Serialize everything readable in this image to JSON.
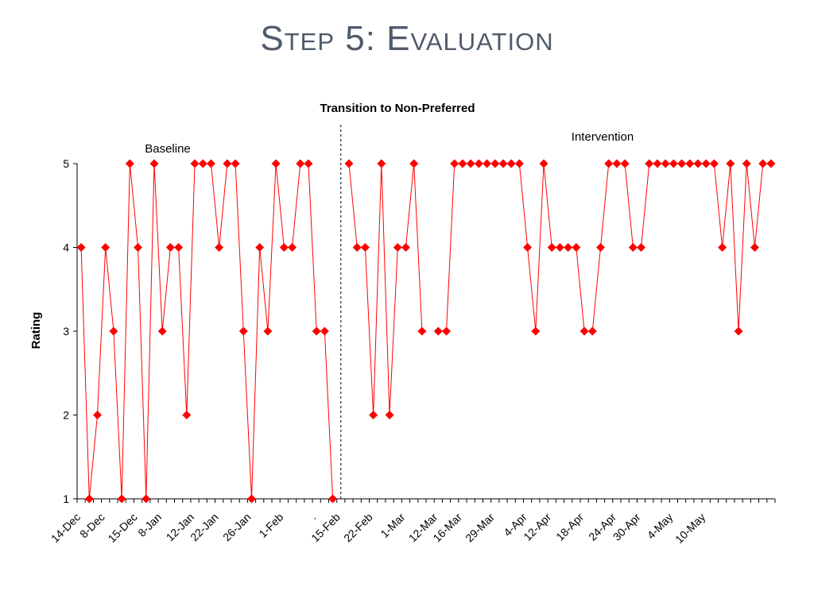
{
  "slide": {
    "title": "Step 5:  Evaluation"
  },
  "chart_data": {
    "type": "line",
    "title": "Transition to Non-Preferred",
    "ylabel": "Rating",
    "xlabel": "",
    "ylim": [
      1,
      5
    ],
    "yticks": [
      1,
      2,
      3,
      4,
      5
    ],
    "grid": false,
    "legend": "none",
    "colors": {
      "series": "#ff0000",
      "axis": "#000000",
      "phase_line": "#000000"
    },
    "x_tick_labels": [
      {
        "index": 0,
        "label": "14-Dec"
      },
      {
        "index": 3,
        "label": "8-Dec"
      },
      {
        "index": 7,
        "label": "15-Dec"
      },
      {
        "index": 10,
        "label": "8-Jan"
      },
      {
        "index": 14,
        "label": "12-Jan"
      },
      {
        "index": 17,
        "label": "22-Jan"
      },
      {
        "index": 21,
        "label": "26-Jan"
      },
      {
        "index": 25,
        "label": "1-Feb"
      },
      {
        "index": 29,
        "label": "."
      },
      {
        "index": 32,
        "label": "15-Feb"
      },
      {
        "index": 36,
        "label": "22-Feb"
      },
      {
        "index": 40,
        "label": "1-Mar"
      },
      {
        "index": 44,
        "label": "12-Mar"
      },
      {
        "index": 47,
        "label": "16-Mar"
      },
      {
        "index": 51,
        "label": "29-Mar"
      },
      {
        "index": 55,
        "label": "4-Apr"
      },
      {
        "index": 58,
        "label": "12-Apr"
      },
      {
        "index": 62,
        "label": "18-Apr"
      },
      {
        "index": 66,
        "label": "24-Apr"
      },
      {
        "index": 69,
        "label": "30-Apr"
      },
      {
        "index": 73,
        "label": "4-May"
      },
      {
        "index": 77,
        "label": "10-May"
      }
    ],
    "phases": [
      {
        "name": "Baseline",
        "values": [
          4,
          1,
          2,
          4,
          3,
          1,
          5,
          4,
          1,
          5,
          3,
          4,
          4,
          2,
          5,
          5,
          5,
          4,
          5,
          5,
          3,
          1,
          4,
          3,
          5,
          4,
          4,
          5,
          5,
          3,
          3,
          1
        ]
      },
      {
        "name": "Intervention",
        "values": [
          5,
          4,
          4,
          2,
          5,
          2,
          4,
          4,
          5,
          3,
          null,
          3,
          3,
          5,
          5,
          5,
          5,
          5,
          5,
          5,
          5,
          5,
          4,
          3,
          5,
          4,
          4,
          4,
          4,
          3,
          3,
          4,
          5,
          5,
          5,
          4,
          4,
          5,
          5,
          5,
          5,
          5,
          5,
          5,
          5,
          5,
          4,
          5,
          3,
          5,
          4,
          5,
          5
        ]
      }
    ]
  }
}
